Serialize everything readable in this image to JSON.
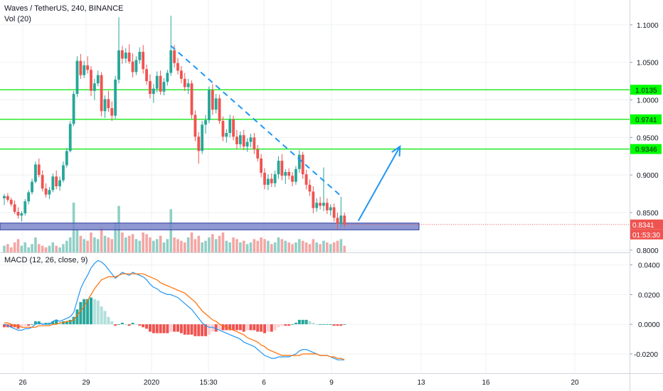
{
  "header": {
    "title": "Waves / TetherUS, 240, BINANCE",
    "volume_label": "Vol (20)",
    "macd_label": "MACD (12, 26, close, 9)"
  },
  "colors": {
    "up": "#26a69a",
    "down": "#ef5350",
    "vol_up": "#8fcfc6",
    "vol_down": "#f4a6a4",
    "level": "#00e600",
    "level_tag": "#00ff00",
    "zone_fill": "#7b86c9",
    "zone_border": "#2a3aa0",
    "trend": "#2196f3",
    "macd_line": "#2196f3",
    "signal_line": "#ff6d00",
    "price_tag": "#ef5350"
  },
  "chart_data": [
    {
      "type": "candlestick",
      "title": "Waves / TetherUS, 240, BINANCE",
      "x_tick_labels": [
        "26",
        "29",
        "2020",
        "15:30",
        "6",
        "9",
        "13",
        "16",
        "20"
      ],
      "y_tick_labels": [
        "1.1000",
        "1.0500",
        "1.0000",
        "0.9500",
        "0.9000",
        "0.8500",
        "0.8000"
      ],
      "ylim": [
        0.797,
        1.133
      ],
      "horizontal_levels": [
        1.0135,
        0.9741,
        0.9346
      ],
      "level_labels": [
        "1.0135",
        "0.9741",
        "0.9346"
      ],
      "support_zone": [
        0.827,
        0.836
      ],
      "last_price": 0.8341,
      "last_price_label": "0.8341",
      "countdown_label": "01:53:30",
      "trend_line": {
        "from_index": 48,
        "from_price": 1.072,
        "to_index": 97,
        "to_price": 0.872
      },
      "projection_arrow": {
        "from_index": 102,
        "from_price": 0.839,
        "to_index": 114,
        "to_price": 0.938
      },
      "candles_ohlc": [
        [
          0.869,
          0.875,
          0.86,
          0.872
        ],
        [
          0.872,
          0.876,
          0.864,
          0.867
        ],
        [
          0.867,
          0.87,
          0.858,
          0.861
        ],
        [
          0.861,
          0.866,
          0.848,
          0.851
        ],
        [
          0.851,
          0.857,
          0.842,
          0.846
        ],
        [
          0.846,
          0.852,
          0.838,
          0.849
        ],
        [
          0.849,
          0.868,
          0.846,
          0.865
        ],
        [
          0.865,
          0.88,
          0.861,
          0.877
        ],
        [
          0.877,
          0.895,
          0.874,
          0.891
        ],
        [
          0.891,
          0.918,
          0.889,
          0.914
        ],
        [
          0.914,
          0.922,
          0.897,
          0.9
        ],
        [
          0.9,
          0.906,
          0.878,
          0.882
        ],
        [
          0.882,
          0.889,
          0.87,
          0.874
        ],
        [
          0.874,
          0.884,
          0.868,
          0.88
        ],
        [
          0.88,
          0.902,
          0.877,
          0.898
        ],
        [
          0.898,
          0.906,
          0.881,
          0.885
        ],
        [
          0.885,
          0.898,
          0.879,
          0.893
        ],
        [
          0.893,
          0.918,
          0.89,
          0.913
        ],
        [
          0.913,
          0.936,
          0.91,
          0.932
        ],
        [
          0.932,
          0.972,
          0.93,
          0.968
        ],
        [
          0.968,
          1.012,
          0.965,
          1.008
        ],
        [
          1.008,
          1.058,
          1.004,
          1.052
        ],
        [
          1.052,
          1.061,
          1.028,
          1.033
        ],
        [
          1.033,
          1.052,
          1.029,
          1.046
        ],
        [
          1.046,
          1.058,
          1.035,
          1.04
        ],
        [
          1.04,
          1.045,
          1.005,
          1.012
        ],
        [
          1.012,
          1.028,
          1.0,
          1.022
        ],
        [
          1.022,
          1.039,
          1.018,
          1.033
        ],
        [
          1.033,
          1.037,
          0.978,
          0.985
        ],
        [
          0.985,
          1.006,
          0.976,
          1.001
        ],
        [
          1.001,
          1.012,
          0.984,
          0.989
        ],
        [
          0.989,
          0.998,
          0.972,
          0.979
        ],
        [
          0.979,
          1.032,
          0.975,
          1.027
        ],
        [
          1.027,
          1.11,
          1.022,
          1.066
        ],
        [
          1.066,
          1.072,
          1.048,
          1.055
        ],
        [
          1.055,
          1.069,
          1.049,
          1.063
        ],
        [
          1.063,
          1.074,
          1.048,
          1.051
        ],
        [
          1.051,
          1.062,
          1.03,
          1.037
        ],
        [
          1.037,
          1.058,
          1.033,
          1.053
        ],
        [
          1.053,
          1.07,
          1.048,
          1.064
        ],
        [
          1.064,
          1.073,
          1.035,
          1.041
        ],
        [
          1.041,
          1.047,
          1.02,
          1.025
        ],
        [
          1.025,
          1.034,
          1.002,
          1.008
        ],
        [
          1.008,
          1.021,
          0.996,
          1.015
        ],
        [
          1.015,
          1.038,
          1.01,
          1.032
        ],
        [
          1.032,
          1.039,
          1.007,
          1.011
        ],
        [
          1.011,
          1.029,
          1.006,
          1.024
        ],
        [
          1.024,
          1.04,
          1.019,
          1.036
        ],
        [
          1.036,
          1.112,
          1.032,
          1.066
        ],
        [
          1.066,
          1.073,
          1.043,
          1.049
        ],
        [
          1.049,
          1.056,
          1.034,
          1.039
        ],
        [
          1.039,
          1.045,
          1.022,
          1.028
        ],
        [
          1.028,
          1.036,
          1.012,
          1.017
        ],
        [
          1.017,
          1.028,
          1.008,
          1.022
        ],
        [
          1.022,
          1.026,
          0.975,
          0.98
        ],
        [
          0.98,
          0.986,
          0.945,
          0.951
        ],
        [
          0.951,
          0.957,
          0.915,
          0.932
        ],
        [
          0.932,
          0.972,
          0.928,
          0.967
        ],
        [
          0.967,
          0.98,
          0.955,
          0.973
        ],
        [
          0.973,
          1.018,
          0.969,
          1.013
        ],
        [
          1.013,
          1.021,
          0.98,
          0.987
        ],
        [
          0.987,
          1.008,
          0.982,
          1.002
        ],
        [
          1.002,
          1.007,
          0.968,
          0.972
        ],
        [
          0.972,
          0.978,
          0.945,
          0.951
        ],
        [
          0.951,
          0.961,
          0.943,
          0.956
        ],
        [
          0.956,
          0.98,
          0.95,
          0.974
        ],
        [
          0.974,
          0.979,
          0.946,
          0.951
        ],
        [
          0.951,
          0.96,
          0.935,
          0.941
        ],
        [
          0.941,
          0.958,
          0.936,
          0.953
        ],
        [
          0.953,
          0.96,
          0.933,
          0.938
        ],
        [
          0.938,
          0.949,
          0.931,
          0.944
        ],
        [
          0.944,
          0.955,
          0.937,
          0.95
        ],
        [
          0.95,
          0.956,
          0.928,
          0.934
        ],
        [
          0.934,
          0.94,
          0.918,
          0.922
        ],
        [
          0.922,
          0.928,
          0.897,
          0.903
        ],
        [
          0.903,
          0.909,
          0.881,
          0.887
        ],
        [
          0.887,
          0.901,
          0.88,
          0.895
        ],
        [
          0.895,
          0.902,
          0.884,
          0.889
        ],
        [
          0.889,
          0.906,
          0.884,
          0.901
        ],
        [
          0.901,
          0.925,
          0.895,
          0.919
        ],
        [
          0.919,
          0.928,
          0.893,
          0.899
        ],
        [
          0.899,
          0.908,
          0.888,
          0.904
        ],
        [
          0.904,
          0.909,
          0.894,
          0.899
        ],
        [
          0.899,
          0.904,
          0.885,
          0.891
        ],
        [
          0.891,
          0.912,
          0.887,
          0.908
        ],
        [
          0.908,
          0.933,
          0.903,
          0.927
        ],
        [
          0.927,
          0.931,
          0.895,
          0.901
        ],
        [
          0.901,
          0.907,
          0.881,
          0.887
        ],
        [
          0.887,
          0.894,
          0.872,
          0.878
        ],
        [
          0.878,
          0.885,
          0.849,
          0.856
        ],
        [
          0.856,
          0.869,
          0.851,
          0.863
        ],
        [
          0.863,
          0.871,
          0.854,
          0.859
        ],
        [
          0.859,
          0.91,
          0.852,
          0.863
        ],
        [
          0.863,
          0.869,
          0.848,
          0.853
        ],
        [
          0.853,
          0.861,
          0.846,
          0.857
        ],
        [
          0.857,
          0.862,
          0.838,
          0.843
        ],
        [
          0.843,
          0.85,
          0.828,
          0.835
        ],
        [
          0.835,
          0.871,
          0.831,
          0.846
        ],
        [
          0.846,
          0.85,
          0.83,
          0.834
        ]
      ],
      "volume": [
        4,
        5,
        3,
        6,
        8,
        4,
        6,
        3,
        5,
        9,
        5,
        4,
        3,
        4,
        6,
        4,
        3,
        5,
        7,
        9,
        30,
        14,
        10,
        8,
        7,
        12,
        9,
        8,
        15,
        10,
        9,
        8,
        18,
        28,
        12,
        9,
        10,
        11,
        8,
        7,
        12,
        11,
        9,
        7,
        8,
        10,
        6,
        8,
        26,
        9,
        8,
        7,
        6,
        9,
        12,
        8,
        10,
        6,
        7,
        9,
        11,
        8,
        10,
        12,
        7,
        6,
        9,
        8,
        6,
        7,
        5,
        6,
        8,
        7,
        9,
        8,
        7,
        5,
        6,
        9,
        8,
        7,
        6,
        5,
        6,
        8,
        7,
        6,
        5,
        8,
        6,
        5,
        7,
        6,
        5,
        6,
        7,
        8,
        4
      ]
    },
    {
      "type": "line",
      "title": "MACD (12, 26, close, 9)",
      "y_tick_labels": [
        "0.0400",
        "0.0200",
        "0.0000",
        "-0.0200"
      ],
      "ylim": [
        -0.033,
        0.048
      ],
      "series": [
        {
          "values": [
            0.0,
            -0.001,
            -0.002,
            -0.003,
            -0.004,
            -0.004,
            -0.003,
            -0.003,
            -0.002,
            0.0,
            0.001,
            0.0,
            0.0,
            0.0,
            0.002,
            0.003,
            0.002,
            0.003,
            0.004,
            0.005,
            0.008,
            0.016,
            0.024,
            0.029,
            0.033,
            0.038,
            0.041,
            0.043,
            0.042,
            0.04,
            0.037,
            0.034,
            0.031,
            0.033,
            0.035,
            0.034,
            0.033,
            0.035,
            0.034,
            0.033,
            0.032,
            0.03,
            0.027,
            0.025,
            0.024,
            0.022,
            0.021,
            0.02,
            0.02,
            0.019,
            0.018,
            0.016,
            0.014,
            0.012,
            0.01,
            0.007,
            0.004,
            0.001,
            -0.001,
            -0.002,
            -0.002,
            -0.003,
            -0.004,
            -0.005,
            -0.006,
            -0.007,
            -0.008,
            -0.009,
            -0.01,
            -0.012,
            -0.013,
            -0.014,
            -0.015,
            -0.017,
            -0.019,
            -0.021,
            -0.022,
            -0.023,
            -0.023,
            -0.022,
            -0.022,
            -0.022,
            -0.022,
            -0.021,
            -0.02,
            -0.018,
            -0.017,
            -0.017,
            -0.018,
            -0.019,
            -0.02,
            -0.021,
            -0.021,
            -0.021,
            -0.022,
            -0.023,
            -0.024,
            -0.024,
            -0.024
          ]
        },
        {
          "values": [
            0.001,
            0.001,
            0.0,
            -0.001,
            -0.001,
            -0.002,
            -0.002,
            -0.002,
            -0.002,
            -0.002,
            -0.001,
            -0.001,
            -0.001,
            -0.001,
            0.0,
            0.0,
            0.001,
            0.001,
            0.002,
            0.002,
            0.003,
            0.006,
            0.009,
            0.012,
            0.016,
            0.02,
            0.024,
            0.027,
            0.03,
            0.031,
            0.032,
            0.032,
            0.032,
            0.033,
            0.034,
            0.034,
            0.034,
            0.034,
            0.034,
            0.034,
            0.034,
            0.033,
            0.032,
            0.031,
            0.03,
            0.028,
            0.027,
            0.026,
            0.025,
            0.024,
            0.023,
            0.022,
            0.021,
            0.019,
            0.017,
            0.015,
            0.012,
            0.009,
            0.007,
            0.005,
            0.003,
            0.002,
            0.0,
            -0.001,
            -0.002,
            -0.003,
            -0.004,
            -0.005,
            -0.006,
            -0.007,
            -0.009,
            -0.01,
            -0.011,
            -0.012,
            -0.014,
            -0.015,
            -0.017,
            -0.018,
            -0.019,
            -0.02,
            -0.021,
            -0.021,
            -0.021,
            -0.021,
            -0.021,
            -0.021,
            -0.02,
            -0.02,
            -0.02,
            -0.02,
            -0.02,
            -0.021,
            -0.021,
            -0.021,
            -0.022,
            -0.022,
            -0.023,
            -0.023,
            -0.024
          ]
        }
      ],
      "histogram": [
        -0.002,
        -0.002,
        -0.002,
        -0.002,
        -0.003,
        -0.002,
        -0.001,
        -0.001,
        0.0,
        0.002,
        0.002,
        0.001,
        0.001,
        0.001,
        0.002,
        0.003,
        0.001,
        0.002,
        0.002,
        0.003,
        0.005,
        0.01,
        0.015,
        0.017,
        0.017,
        0.018,
        0.017,
        0.016,
        0.012,
        0.009,
        0.005,
        0.002,
        -0.001,
        0.0,
        0.001,
        0.0,
        -0.001,
        0.001,
        0.0,
        -0.001,
        -0.002,
        -0.003,
        -0.005,
        -0.006,
        -0.006,
        -0.006,
        -0.006,
        -0.006,
        -0.005,
        -0.005,
        -0.005,
        -0.006,
        -0.007,
        -0.007,
        -0.007,
        -0.008,
        -0.008,
        -0.008,
        -0.008,
        -0.007,
        -0.005,
        -0.005,
        -0.004,
        -0.004,
        -0.004,
        -0.004,
        -0.004,
        -0.004,
        -0.004,
        -0.005,
        -0.004,
        -0.004,
        -0.004,
        -0.005,
        -0.005,
        -0.006,
        -0.005,
        -0.005,
        -0.004,
        -0.002,
        -0.001,
        -0.001,
        -0.001,
        0.0,
        0.001,
        0.003,
        0.003,
        0.003,
        0.002,
        0.001,
        0.0,
        0.0,
        0.0,
        0.0,
        0.0,
        -0.001,
        -0.001,
        -0.001,
        0.0
      ]
    }
  ]
}
